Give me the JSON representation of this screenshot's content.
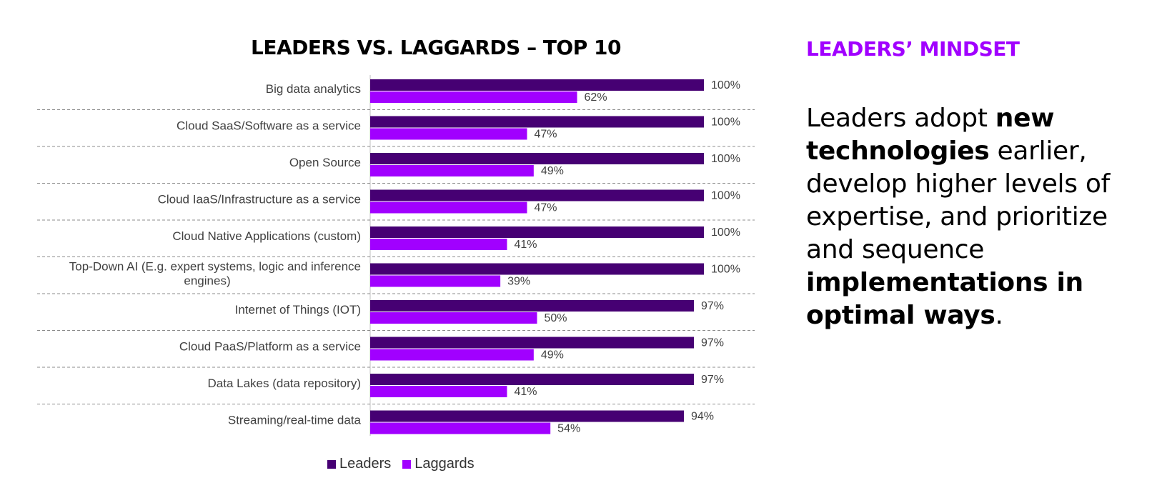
{
  "chart_data": {
    "type": "bar",
    "orientation": "horizontal",
    "title": "LEADERS VS. LAGGARDS – TOP 10",
    "categories": [
      "Big data analytics",
      "Cloud SaaS/Software as a service",
      "Open Source",
      "Cloud IaaS/Infrastructure as a service",
      "Cloud Native Applications (custom)",
      "Top-Down AI (E.g. expert systems, logic and inference engines)",
      "Internet of Things (IOT)",
      "Cloud PaaS/Platform as a service",
      "Data Lakes (data repository)",
      "Streaming/real-time data"
    ],
    "series": [
      {
        "name": "Leaders",
        "color": "#460073",
        "values": [
          100,
          100,
          100,
          100,
          100,
          100,
          97,
          97,
          97,
          94
        ],
        "labels": [
          "100%",
          "100%",
          "100%",
          "100%",
          "100%",
          "100%",
          "97%",
          "97%",
          "97%",
          "94%"
        ]
      },
      {
        "name": "Laggards",
        "color": "#A100FF",
        "values": [
          62,
          47,
          49,
          47,
          41,
          39,
          50,
          49,
          41,
          54
        ],
        "labels": [
          "62%",
          "47%",
          "49%",
          "47%",
          "41%",
          "39%",
          "50%",
          "49%",
          "41%",
          "54%"
        ]
      }
    ],
    "xlim": [
      0,
      100
    ],
    "grid": "dashed row separators",
    "legend": "bottom-center"
  },
  "legend": {
    "leaders": "Leaders",
    "laggards": "Laggards"
  },
  "sidebar": {
    "heading": "LEADERS’ MINDSET",
    "heading_color": "#A100FF",
    "text_parts": [
      "Leaders adopt ",
      "new technologies",
      " earlier, develop higher levels of expertise, and prioritize and sequence ",
      "implementations in optimal ways",
      "."
    ]
  }
}
